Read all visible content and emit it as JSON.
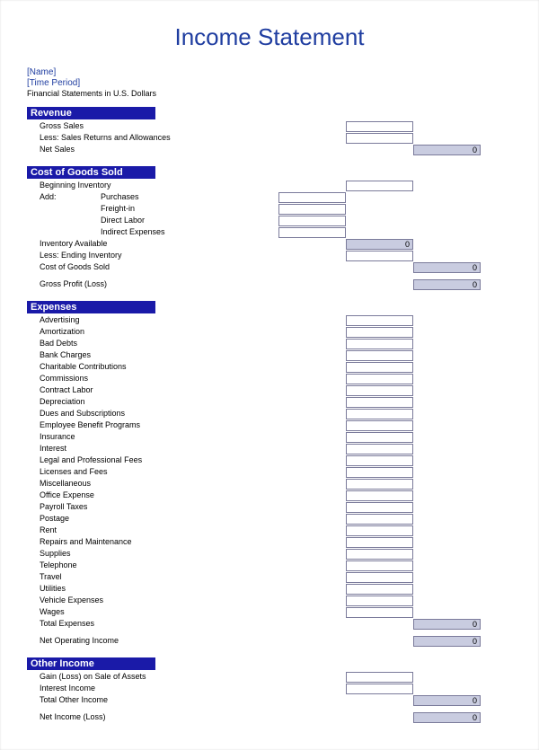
{
  "colors": {
    "header_bg": "#1a1aa8",
    "header_text": "#ffffff",
    "title_color": "#1f3da0",
    "meta_color": "#1f3da0",
    "cell_border": "#7a7a9a",
    "shaded_bg": "#c9cce0",
    "page_bg": "#ffffff",
    "text": "#000000"
  },
  "title": "Income Statement",
  "meta": {
    "name": "[Name]",
    "period": "[Time Period]",
    "currency_note": "Financial Statements in U.S. Dollars"
  },
  "sections": {
    "revenue": {
      "header": "Revenue",
      "lines": {
        "gross_sales": "Gross Sales",
        "less_returns": "Less: Sales Returns and Allowances",
        "net_sales": "Net Sales"
      },
      "values": {
        "net_sales": "0"
      }
    },
    "cogs": {
      "header": "Cost of Goods Sold",
      "lines": {
        "beg_inventory": "Beginning Inventory",
        "add": "Add:",
        "purchases": "Purchases",
        "freight_in": "Freight-in",
        "direct_labor": "Direct Labor",
        "indirect_expenses": "Indirect Expenses",
        "inventory_available": "Inventory Available",
        "less_ending": "Less: Ending Inventory",
        "cogs": "Cost of Goods Sold",
        "gross_profit": "Gross Profit (Loss)"
      },
      "values": {
        "inv_available": "0",
        "cogs": "0",
        "gross_profit": "0"
      }
    },
    "expenses": {
      "header": "Expenses",
      "items": [
        "Advertising",
        "Amortization",
        "Bad Debts",
        "Bank Charges",
        "Charitable Contributions",
        "Commissions",
        "Contract Labor",
        "Depreciation",
        "Dues and Subscriptions",
        "Employee Benefit Programs",
        "Insurance",
        "Interest",
        "Legal and Professional Fees",
        "Licenses and Fees",
        "Miscellaneous",
        "Office Expense",
        "Payroll Taxes",
        "Postage",
        "Rent",
        "Repairs and Maintenance",
        "Supplies",
        "Telephone",
        "Travel",
        "Utilities",
        "Vehicle Expenses",
        "Wages"
      ],
      "total_label": "Total Expenses",
      "net_op_label": "Net Operating Income",
      "values": {
        "total": "0",
        "net_op": "0"
      }
    },
    "other": {
      "header": "Other Income",
      "lines": {
        "gain_loss": "Gain (Loss) on Sale of Assets",
        "interest": "Interest Income",
        "total_other": "Total Other Income",
        "net_income": "Net Income (Loss)"
      },
      "values": {
        "total_other": "0",
        "net_income": "0"
      }
    }
  }
}
